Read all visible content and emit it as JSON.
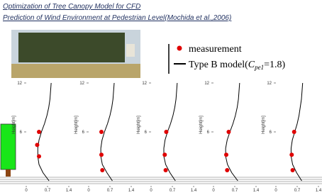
{
  "header": {
    "title": "Optimization of Tree Canopy Model for CFD",
    "subtitle": "Prediction of Wind Environment at Pedestrian Level(Mochida et al.,2006)"
  },
  "legend": {
    "measurement": "measurement",
    "model_prefix": "Type B model(",
    "model_symbol": "C",
    "model_subscript": "pe1",
    "model_suffix": "=1.8)"
  },
  "chart_data": [
    {
      "type": "line",
      "y_label": "Height[m]",
      "xlim": [
        0,
        1.4
      ],
      "xticks": [
        0,
        0.7,
        1.4
      ],
      "ylim": [
        0,
        12
      ],
      "yticks": [
        6,
        12
      ],
      "series": [
        {
          "color": "#e00000",
          "x": [
            0.42,
            0.36,
            0.42
          ],
          "values": [
            6,
            4.4,
            3
          ]
        },
        {
          "color": "#000000",
          "x": [
            0.75,
            0.55,
            0.42,
            0.38,
            0.38,
            0.42,
            0.5,
            0.6,
            0.68,
            0.74,
            0.78,
            0.8,
            0.82
          ],
          "values": [
            0,
            1,
            2,
            3,
            4,
            5,
            6,
            7,
            8,
            9,
            10,
            11,
            12
          ]
        }
      ]
    },
    {
      "type": "line",
      "y_label": "Height[m]",
      "xlim": [
        0,
        1.4
      ],
      "xticks": [
        0,
        0.7,
        1.4
      ],
      "ylim": [
        0,
        12
      ],
      "yticks": [
        6,
        12
      ],
      "series": [
        {
          "color": "#e00000",
          "x": [
            0.42,
            0.42,
            0.45
          ],
          "values": [
            6,
            3.2,
            1.3
          ]
        },
        {
          "color": "#000000",
          "x": [
            0.78,
            0.6,
            0.45,
            0.4,
            0.4,
            0.44,
            0.52,
            0.62,
            0.7,
            0.76,
            0.8,
            0.82,
            0.84
          ],
          "values": [
            0,
            1,
            2,
            3,
            4,
            5,
            6,
            7,
            8,
            9,
            10,
            11,
            12
          ]
        }
      ]
    },
    {
      "type": "line",
      "y_label": "Height[m]",
      "xlim": [
        0,
        1.4
      ],
      "xticks": [
        0,
        0.7,
        1.4
      ],
      "ylim": [
        0,
        12
      ],
      "yticks": [
        6,
        12
      ],
      "series": [
        {
          "color": "#e00000",
          "x": [
            0.5,
            0.45,
            0.48
          ],
          "values": [
            6,
            3.2,
            1.3
          ]
        },
        {
          "color": "#000000",
          "x": [
            0.8,
            0.62,
            0.48,
            0.42,
            0.42,
            0.46,
            0.54,
            0.64,
            0.72,
            0.78,
            0.82,
            0.84,
            0.86
          ],
          "values": [
            0,
            1,
            2,
            3,
            4,
            5,
            6,
            7,
            8,
            9,
            10,
            11,
            12
          ]
        }
      ]
    },
    {
      "type": "line",
      "y_label": "Height[m]",
      "xlim": [
        0,
        1.4
      ],
      "xticks": [
        0,
        0.7,
        1.4
      ],
      "ylim": [
        0,
        12
      ],
      "yticks": [
        6,
        12
      ],
      "series": [
        {
          "color": "#e00000",
          "x": [
            0.5,
            0.42,
            0.45
          ],
          "values": [
            6,
            3.2,
            1.3
          ]
        },
        {
          "color": "#000000",
          "x": [
            0.8,
            0.6,
            0.46,
            0.4,
            0.4,
            0.45,
            0.54,
            0.64,
            0.72,
            0.78,
            0.82,
            0.84,
            0.86
          ],
          "values": [
            0,
            1,
            2,
            3,
            4,
            5,
            6,
            7,
            8,
            9,
            10,
            11,
            12
          ]
        }
      ]
    },
    {
      "type": "line",
      "y_label": "Height[m]",
      "xlim": [
        0,
        1.4
      ],
      "xticks": [
        0,
        0.7,
        1.4
      ],
      "ylim": [
        0,
        12
      ],
      "yticks": [
        6,
        12
      ],
      "series": [
        {
          "color": "#e00000",
          "x": [
            0.6,
            0.52,
            0.55
          ],
          "values": [
            6,
            3.2,
            1.3
          ]
        },
        {
          "color": "#000000",
          "x": [
            0.85,
            0.68,
            0.55,
            0.5,
            0.5,
            0.54,
            0.62,
            0.7,
            0.76,
            0.8,
            0.84,
            0.86,
            0.88
          ],
          "values": [
            0,
            1,
            2,
            3,
            4,
            5,
            6,
            7,
            8,
            9,
            10,
            11,
            12
          ]
        }
      ]
    }
  ]
}
